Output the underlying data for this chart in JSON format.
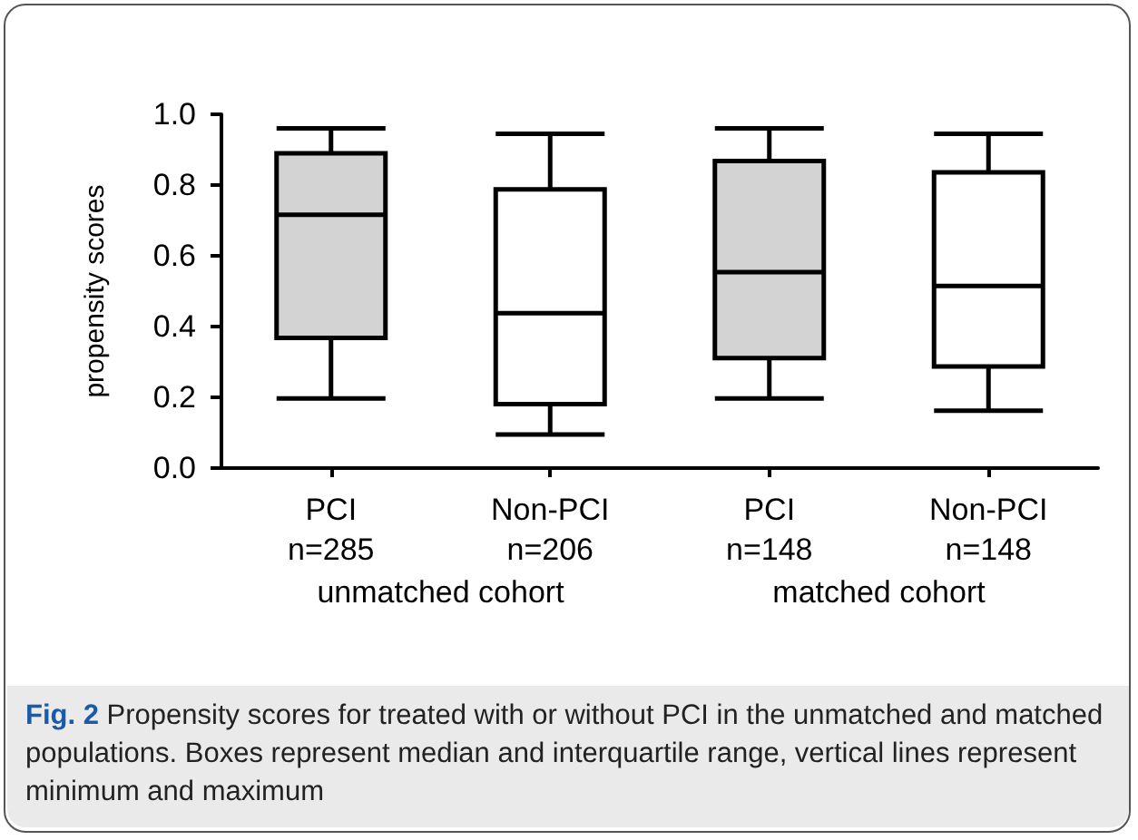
{
  "chart_data": {
    "type": "box",
    "ylabel": "propensity scores",
    "categories": [
      "PCI\nn=285",
      "Non-PCI\nn=206",
      "PCI\nn=148",
      "Non-PCI\nn=148"
    ],
    "boxes": [
      {
        "low": 0.197,
        "q1": 0.368,
        "median": 0.716,
        "q3": 0.89,
        "high": 0.96
      },
      {
        "low": 0.095,
        "q1": 0.181,
        "median": 0.438,
        "q3": 0.788,
        "high": 0.945
      },
      {
        "low": 0.197,
        "q1": 0.311,
        "median": 0.554,
        "q3": 0.868,
        "high": 0.96
      },
      {
        "low": 0.162,
        "q1": 0.287,
        "median": 0.515,
        "q3": 0.836,
        "high": 0.945
      }
    ],
    "colors": [
      "#d3d3d3",
      "#ffffff",
      "#d3d3d3",
      "#ffffff"
    ],
    "ylim": [
      0,
      1
    ],
    "yticks": [
      {
        "value": 0,
        "label": "0.0"
      },
      {
        "value": 0.2,
        "label": "0.2"
      },
      {
        "value": 0.4,
        "label": "0.4"
      },
      {
        "value": 0.6,
        "label": "0.6"
      },
      {
        "value": 0.8,
        "label": "0.8"
      },
      {
        "value": 1,
        "label": "1.0"
      }
    ],
    "grid": false,
    "annotations": [
      "unmatched cohort",
      "matched cohort",
      "Fig. 2 Propensity scores for treated with or without PCI in the unmatched and matched populations. Boxes represent median and interquartile range, vertical lines represent minimum and maximum"
    ]
  }
}
